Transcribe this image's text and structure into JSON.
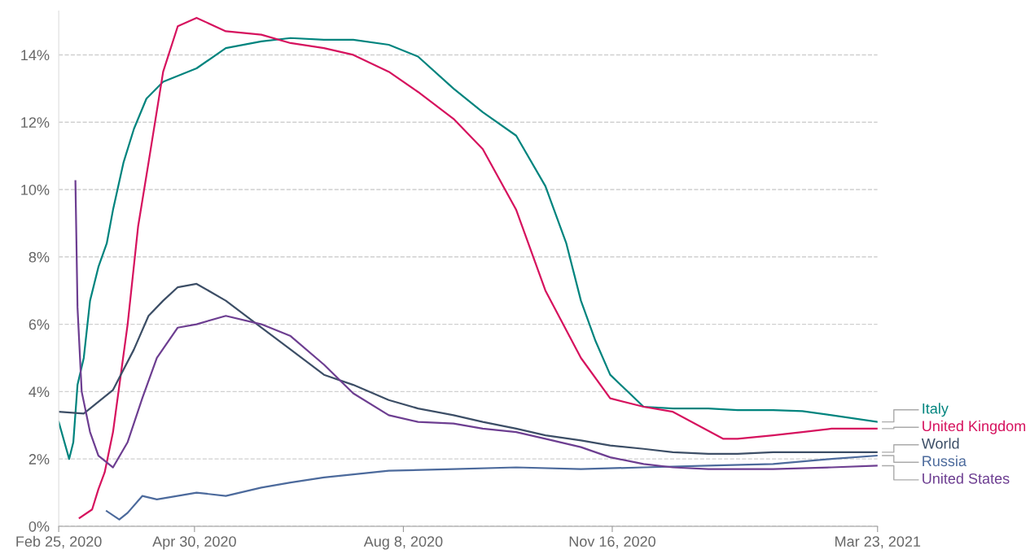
{
  "chart_data": {
    "type": "line",
    "xlim": [
      "2020-02-25",
      "2021-03-23"
    ],
    "xticks": [
      {
        "value": "2020-02-25",
        "label": "Feb 25, 2020"
      },
      {
        "value": "2020-04-30",
        "label": "Apr 30, 2020"
      },
      {
        "value": "2020-08-08",
        "label": "Aug 8, 2020"
      },
      {
        "value": "2020-11-16",
        "label": "Nov 16, 2020"
      },
      {
        "value": "2021-03-23",
        "label": "Mar 23, 2021"
      }
    ],
    "ylim": [
      0,
      15.3
    ],
    "yticks": [
      {
        "value": 0,
        "label": "0%"
      },
      {
        "value": 2,
        "label": "2%"
      },
      {
        "value": 4,
        "label": "4%"
      },
      {
        "value": 6,
        "label": "6%"
      },
      {
        "value": 8,
        "label": "8%"
      },
      {
        "value": 10,
        "label": "10%"
      },
      {
        "value": 12,
        "label": "12%"
      },
      {
        "value": 14,
        "label": "14%"
      }
    ],
    "grid": "y",
    "legend": "right",
    "line_style": "solid",
    "series": [
      {
        "name": "Italy",
        "color": "#00847e",
        "x": [
          "2020-02-25",
          "2020-03-01",
          "2020-03-03",
          "2020-03-05",
          "2020-03-08",
          "2020-03-11",
          "2020-03-15",
          "2020-03-19",
          "2020-03-22",
          "2020-03-27",
          "2020-04-01",
          "2020-04-07",
          "2020-04-15",
          "2020-05-01",
          "2020-05-15",
          "2020-06-01",
          "2020-06-15",
          "2020-07-01",
          "2020-07-15",
          "2020-08-01",
          "2020-08-15",
          "2020-09-01",
          "2020-09-15",
          "2020-10-01",
          "2020-10-15",
          "2020-10-25",
          "2020-11-01",
          "2020-11-08",
          "2020-11-15",
          "2020-12-01",
          "2020-12-15",
          "2021-01-01",
          "2021-01-15",
          "2021-02-01",
          "2021-02-15",
          "2021-03-01",
          "2021-03-23"
        ],
        "values": [
          3.1,
          2.0,
          2.5,
          4.2,
          5.0,
          6.7,
          7.7,
          8.4,
          9.4,
          10.8,
          11.8,
          12.7,
          13.2,
          13.6,
          14.2,
          14.4,
          14.5,
          14.45,
          14.45,
          14.3,
          13.95,
          13.0,
          12.3,
          11.6,
          10.1,
          8.4,
          6.7,
          5.5,
          4.5,
          3.55,
          3.5,
          3.5,
          3.45,
          3.45,
          3.42,
          3.3,
          3.1
        ]
      },
      {
        "name": "United Kingdom",
        "color": "#d6125e",
        "x": [
          "2020-03-06",
          "2020-03-12",
          "2020-03-15",
          "2020-03-18",
          "2020-03-22",
          "2020-03-29",
          "2020-04-03",
          "2020-04-08",
          "2020-04-15",
          "2020-04-22",
          "2020-05-01",
          "2020-05-15",
          "2020-06-01",
          "2020-06-15",
          "2020-07-01",
          "2020-07-15",
          "2020-08-01",
          "2020-08-15",
          "2020-09-01",
          "2020-09-15",
          "2020-10-01",
          "2020-10-15",
          "2020-11-01",
          "2020-11-15",
          "2020-12-01",
          "2020-12-15",
          "2021-01-08",
          "2021-01-15",
          "2021-02-01",
          "2021-02-15",
          "2021-03-01",
          "2021-03-23"
        ],
        "values": [
          0.25,
          0.5,
          1.1,
          1.6,
          2.8,
          6.0,
          8.9,
          10.8,
          13.5,
          14.85,
          15.1,
          14.7,
          14.6,
          14.35,
          14.2,
          14.0,
          13.5,
          12.9,
          12.1,
          11.2,
          9.4,
          7.0,
          5.0,
          3.8,
          3.55,
          3.4,
          2.6,
          2.6,
          2.7,
          2.8,
          2.9,
          2.9
        ]
      },
      {
        "name": "World",
        "color": "#3c4e66",
        "x": [
          "2020-02-25",
          "2020-03-08",
          "2020-03-15",
          "2020-03-22",
          "2020-04-01",
          "2020-04-08",
          "2020-04-15",
          "2020-04-22",
          "2020-05-01",
          "2020-05-15",
          "2020-06-01",
          "2020-06-15",
          "2020-07-01",
          "2020-07-15",
          "2020-08-01",
          "2020-08-15",
          "2020-09-01",
          "2020-09-15",
          "2020-10-01",
          "2020-10-15",
          "2020-11-01",
          "2020-11-15",
          "2020-12-01",
          "2020-12-15",
          "2021-01-01",
          "2021-01-15",
          "2021-02-01",
          "2021-03-23"
        ],
        "values": [
          3.4,
          3.35,
          3.7,
          4.05,
          5.25,
          6.25,
          6.7,
          7.1,
          7.2,
          6.7,
          5.9,
          5.25,
          4.5,
          4.2,
          3.75,
          3.5,
          3.3,
          3.1,
          2.9,
          2.7,
          2.55,
          2.4,
          2.3,
          2.2,
          2.15,
          2.15,
          2.2,
          2.2
        ]
      },
      {
        "name": "Russia",
        "color": "#4c6a9c",
        "x": [
          "2020-03-19",
          "2020-03-25",
          "2020-03-29",
          "2020-04-05",
          "2020-04-12",
          "2020-05-01",
          "2020-05-15",
          "2020-06-01",
          "2020-06-15",
          "2020-07-01",
          "2020-08-01",
          "2020-09-01",
          "2020-10-01",
          "2020-11-01",
          "2020-12-01",
          "2021-01-01",
          "2021-02-01",
          "2021-03-01",
          "2021-03-23"
        ],
        "values": [
          0.45,
          0.2,
          0.4,
          0.9,
          0.8,
          1.0,
          0.9,
          1.15,
          1.3,
          1.45,
          1.65,
          1.7,
          1.75,
          1.7,
          1.75,
          1.8,
          1.85,
          2.0,
          2.1
        ]
      },
      {
        "name": "United States",
        "color": "#6d3e91",
        "x": [
          "2020-03-04",
          "2020-03-05",
          "2020-03-07",
          "2020-03-11",
          "2020-03-15",
          "2020-03-22",
          "2020-03-29",
          "2020-04-05",
          "2020-04-12",
          "2020-04-22",
          "2020-05-01",
          "2020-05-15",
          "2020-06-01",
          "2020-06-15",
          "2020-07-01",
          "2020-07-15",
          "2020-08-01",
          "2020-08-15",
          "2020-09-01",
          "2020-09-15",
          "2020-10-01",
          "2020-10-15",
          "2020-11-01",
          "2020-11-15",
          "2020-12-01",
          "2020-12-15",
          "2021-01-01",
          "2021-02-01",
          "2021-03-01",
          "2021-03-23"
        ],
        "values": [
          10.25,
          6.5,
          4.0,
          2.8,
          2.1,
          1.75,
          2.5,
          3.8,
          5.0,
          5.9,
          6.0,
          6.25,
          6.0,
          5.65,
          4.8,
          3.95,
          3.3,
          3.1,
          3.05,
          2.9,
          2.8,
          2.6,
          2.35,
          2.05,
          1.85,
          1.75,
          1.7,
          1.7,
          1.75,
          1.8
        ]
      }
    ]
  }
}
